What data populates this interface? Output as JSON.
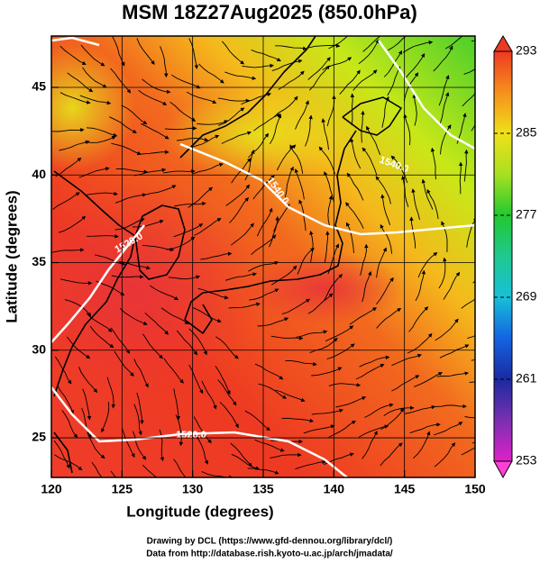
{
  "map": {
    "title": "MSM 18Z27Aug2025 (850.0hPa)",
    "xlabel": "Longitude (degrees)",
    "ylabel": "Latitude  (degrees)",
    "xlim": [
      120,
      150
    ],
    "ylim": [
      22.74,
      47.93
    ],
    "xticks": [
      120,
      125,
      130,
      135,
      140,
      145,
      150
    ],
    "yticks": [
      25,
      30,
      35,
      40,
      45
    ],
    "grid": true,
    "colorbar": {
      "lim": [
        253,
        293
      ],
      "ticks": [
        253,
        261,
        269,
        277,
        285,
        293
      ]
    },
    "contours": [
      {
        "value": 1520,
        "label": "1520.0"
      },
      {
        "value": 1540,
        "label": "1540.0"
      },
      {
        "value": 1520,
        "label": "1520.0"
      },
      {
        "value": 1540,
        "label": "1540.0"
      }
    ],
    "credits": [
      "Drawing by DCL (https://www.gfd-dennou.org/library/dcl/)",
      "Data from http://database.rish.kyoto-u.ac.jp/arch/jmadata/"
    ]
  }
}
